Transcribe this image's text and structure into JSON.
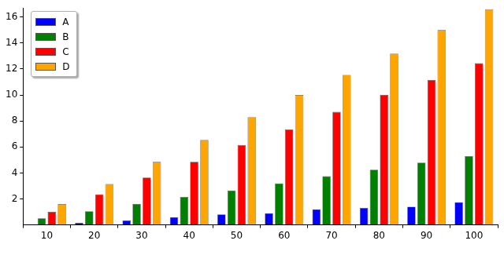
{
  "chart_data": {
    "type": "bar",
    "categories": [
      10,
      20,
      30,
      40,
      50,
      60,
      70,
      80,
      90,
      100
    ],
    "series": [
      {
        "name": "A",
        "color": "#0000ff",
        "values": [
          0.05,
          0.15,
          0.35,
          0.6,
          0.8,
          0.9,
          1.2,
          1.3,
          1.4,
          1.75
        ]
      },
      {
        "name": "B",
        "color": "#008000",
        "values": [
          0.5,
          1.05,
          1.6,
          2.15,
          2.65,
          3.2,
          3.75,
          4.25,
          4.8,
          5.3
        ]
      },
      {
        "name": "C",
        "color": "#ff0000",
        "values": [
          1.0,
          2.35,
          3.65,
          4.85,
          6.15,
          7.35,
          8.7,
          10.0,
          11.15,
          12.45
        ]
      },
      {
        "name": "D",
        "color": "#ffa500",
        "values": [
          1.6,
          3.15,
          4.85,
          6.55,
          8.3,
          10.0,
          11.55,
          13.2,
          15.0,
          16.6
        ]
      }
    ],
    "ylim": [
      0,
      16.7
    ],
    "yticks": [
      2,
      4,
      6,
      8,
      10,
      12,
      14,
      16
    ],
    "grid": false,
    "legend": "upper left"
  }
}
